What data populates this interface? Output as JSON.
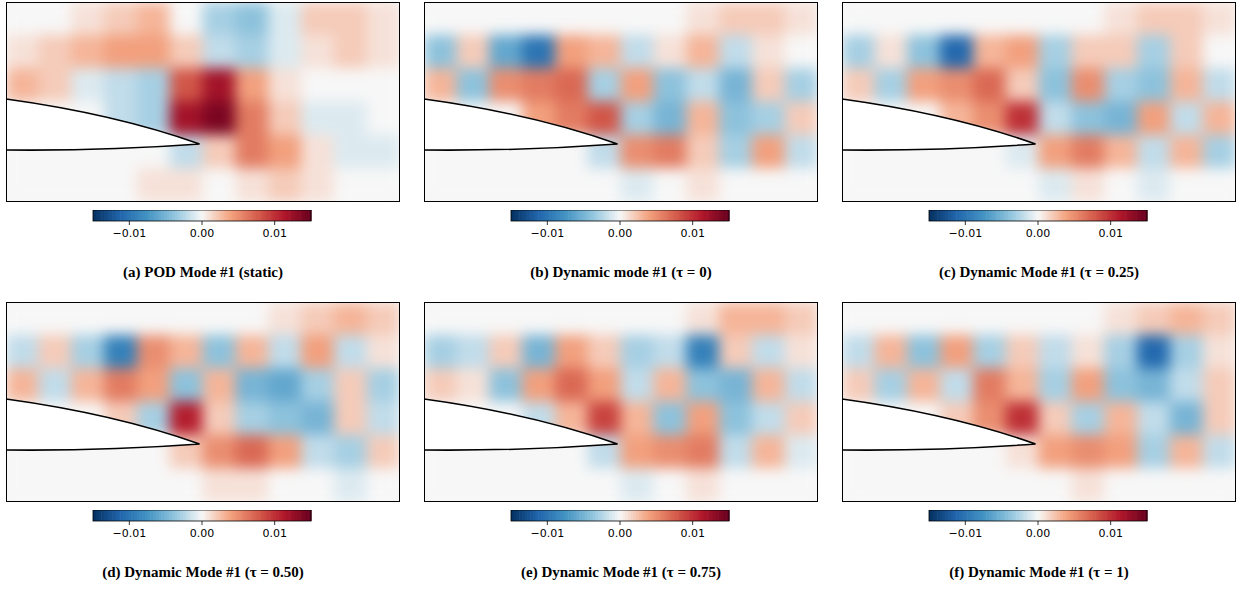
{
  "chart_data": [
    {
      "type": "heatmap",
      "title": "(a) POD Mode #1 (static)",
      "tick_labels": false,
      "cells": [
        [
          0,
          0,
          0.001,
          0.002,
          0.003,
          0,
          -0.003,
          -0.004,
          -0.001,
          0.002,
          0.002,
          0.001
        ],
        [
          0.001,
          0.002,
          0.003,
          0.004,
          0.004,
          0.002,
          -0.002,
          -0.003,
          -0.001,
          0.001,
          0.002,
          0.001
        ],
        [
          0.003,
          0.002,
          -0.001,
          -0.002,
          -0.003,
          0.008,
          0.012,
          0.004,
          0.001,
          0,
          0,
          0
        ],
        [
          0,
          0,
          0,
          -0.002,
          -0.003,
          0.012,
          0.014,
          0.006,
          0.002,
          -0.001,
          -0.001,
          0
        ],
        [
          0,
          0,
          0,
          0,
          0,
          -0.002,
          0.002,
          0.006,
          0.004,
          0.001,
          -0.001,
          -0.001
        ],
        [
          0,
          0,
          0,
          0,
          0.001,
          0.001,
          0,
          0.001,
          0.002,
          0.001,
          0,
          0
        ]
      ],
      "colorbar": {
        "range": [
          -0.015,
          0.015
        ],
        "ticks": [
          {
            "value": -0.01,
            "label": "−0.01"
          },
          {
            "value": 0,
            "label": "0.00"
          },
          0.01
        ]
      }
    },
    {
      "type": "heatmap",
      "title": "(b) Dynamic mode #1 (τ = 0)",
      "tick_labels": false,
      "cells": [
        [
          0,
          0,
          0,
          0,
          0,
          0,
          0,
          0,
          0.001,
          0.002,
          0.002,
          0.001
        ],
        [
          -0.004,
          0.002,
          -0.006,
          -0.01,
          0.004,
          0.003,
          -0.002,
          0.001,
          0.003,
          -0.002,
          0.001,
          0
        ],
        [
          0.003,
          -0.004,
          0.005,
          0.006,
          0.007,
          -0.003,
          0.004,
          -0.004,
          -0.002,
          -0.005,
          0.002,
          -0.003
        ],
        [
          0,
          0,
          0,
          0.004,
          0.006,
          0.008,
          -0.003,
          -0.005,
          0.003,
          -0.004,
          -0.003,
          0.002
        ],
        [
          0,
          0,
          0,
          0,
          0,
          -0.002,
          0.005,
          0.006,
          0.002,
          -0.003,
          0.004,
          -0.002
        ],
        [
          0,
          0,
          0,
          0,
          0,
          0,
          -0.001,
          0,
          0.001,
          0,
          0,
          0
        ]
      ],
      "colorbar": {
        "range": [
          -0.015,
          0.015
        ],
        "ticks": [
          {
            "value": -0.01,
            "label": "−0.01"
          },
          {
            "value": 0,
            "label": "0.00"
          },
          0.01
        ]
      }
    },
    {
      "type": "heatmap",
      "title": "(c) Dynamic Mode #1 (τ = 0.25)",
      "tick_labels": false,
      "cells": [
        [
          0,
          0,
          0,
          0,
          0,
          0,
          0,
          0,
          0.001,
          0.002,
          0.002,
          0.001
        ],
        [
          -0.003,
          0.001,
          -0.004,
          -0.011,
          0.003,
          0.004,
          -0.003,
          0.002,
          0.002,
          -0.003,
          0.002,
          0
        ],
        [
          0.002,
          -0.003,
          0.004,
          0.005,
          0.007,
          0.002,
          -0.004,
          0.005,
          -0.003,
          -0.004,
          0.003,
          -0.002
        ],
        [
          0,
          0,
          0,
          0.003,
          0.005,
          0.01,
          -0.002,
          -0.004,
          -0.005,
          0.004,
          -0.002,
          0.003
        ],
        [
          0,
          0,
          0,
          0,
          0,
          -0.001,
          0.004,
          0.006,
          0.003,
          -0.002,
          0.003,
          -0.003
        ],
        [
          0,
          0,
          0,
          0,
          0,
          0,
          -0.001,
          0.001,
          0,
          -0.001,
          0,
          0
        ]
      ],
      "colorbar": {
        "range": [
          -0.015,
          0.015
        ],
        "ticks": [
          {
            "value": -0.01,
            "label": "−0.01"
          },
          {
            "value": 0,
            "label": "0.00"
          },
          0.01
        ]
      }
    },
    {
      "type": "heatmap",
      "title": "(d) Dynamic Mode #1 (τ = 0.50)",
      "tick_labels": false,
      "cells": [
        [
          0,
          0,
          0,
          0,
          0,
          0,
          0,
          0,
          0.001,
          0.002,
          0.003,
          0.002
        ],
        [
          -0.002,
          0.002,
          -0.003,
          -0.009,
          0.005,
          0.003,
          -0.004,
          0.003,
          -0.002,
          0.004,
          -0.002,
          0.001
        ],
        [
          0.003,
          -0.002,
          0.003,
          0.006,
          0.004,
          -0.004,
          0.003,
          -0.005,
          -0.006,
          -0.003,
          0.002,
          -0.003
        ],
        [
          0,
          0,
          0,
          0.002,
          -0.003,
          0.011,
          0.002,
          -0.003,
          -0.004,
          -0.005,
          0.002,
          -0.002
        ],
        [
          0,
          0,
          0,
          0,
          0,
          0.002,
          0.005,
          0.007,
          0.004,
          -0.002,
          -0.003,
          0.002
        ],
        [
          0,
          0,
          0,
          0,
          0,
          0,
          0.001,
          0.001,
          0,
          0,
          -0.001,
          0
        ]
      ],
      "colorbar": {
        "range": [
          -0.015,
          0.015
        ],
        "ticks": [
          {
            "value": -0.01,
            "label": "−0.01"
          },
          {
            "value": 0,
            "label": "0.00"
          },
          0.01
        ]
      }
    },
    {
      "type": "heatmap",
      "title": "(e) Dynamic Mode #1 (τ = 0.75)",
      "tick_labels": false,
      "cells": [
        [
          0,
          0,
          0,
          0,
          0,
          0,
          0,
          0,
          0.001,
          0.003,
          0.003,
          0.002
        ],
        [
          -0.003,
          -0.002,
          0.002,
          -0.005,
          0.004,
          0.002,
          -0.003,
          -0.002,
          -0.009,
          0.002,
          -0.002,
          0.001
        ],
        [
          0.002,
          0.001,
          -0.004,
          0.004,
          0.007,
          0.004,
          -0.002,
          0.003,
          -0.004,
          -0.005,
          0.003,
          -0.002
        ],
        [
          0,
          0,
          0,
          -0.002,
          0.003,
          0.009,
          0.003,
          -0.004,
          0.004,
          -0.004,
          -0.002,
          0.002
        ],
        [
          0,
          0,
          0,
          0,
          0,
          -0.002,
          0.004,
          0.005,
          0.006,
          -0.002,
          0.003,
          -0.001
        ],
        [
          0,
          0,
          0,
          0,
          0,
          0,
          -0.001,
          0,
          0.001,
          0,
          0,
          0
        ]
      ],
      "colorbar": {
        "range": [
          -0.015,
          0.015
        ],
        "ticks": [
          {
            "value": -0.01,
            "label": "−0.01"
          },
          {
            "value": 0,
            "label": "0.00"
          },
          0.01
        ]
      }
    },
    {
      "type": "heatmap",
      "title": "(f) Dynamic Mode #1 (τ = 1)",
      "tick_labels": false,
      "cells": [
        [
          0,
          0,
          0,
          0,
          0,
          0,
          0,
          0,
          0.001,
          0.002,
          0.003,
          0.002
        ],
        [
          -0.002,
          0.003,
          -0.004,
          0.004,
          -0.003,
          0.002,
          -0.002,
          0.001,
          -0.003,
          -0.011,
          -0.003,
          0.001
        ],
        [
          0.002,
          -0.003,
          0.003,
          -0.002,
          0.006,
          0.003,
          -0.003,
          0.004,
          -0.004,
          -0.005,
          -0.002,
          0.002
        ],
        [
          0,
          0,
          0,
          0.002,
          0.005,
          0.01,
          0.002,
          -0.003,
          0.003,
          -0.002,
          -0.005,
          0.002
        ],
        [
          0,
          0,
          0,
          0,
          0,
          0.001,
          0.004,
          0.005,
          0.004,
          -0.003,
          0.003,
          -0.002
        ],
        [
          0,
          0,
          0,
          0,
          0,
          0,
          0,
          0.001,
          0,
          0,
          0,
          0
        ]
      ],
      "colorbar": {
        "range": [
          -0.015,
          0.015
        ],
        "ticks": [
          {
            "value": -0.01,
            "label": "−0.01"
          },
          {
            "value": 0,
            "label": "0.00"
          },
          0.01
        ]
      }
    }
  ]
}
